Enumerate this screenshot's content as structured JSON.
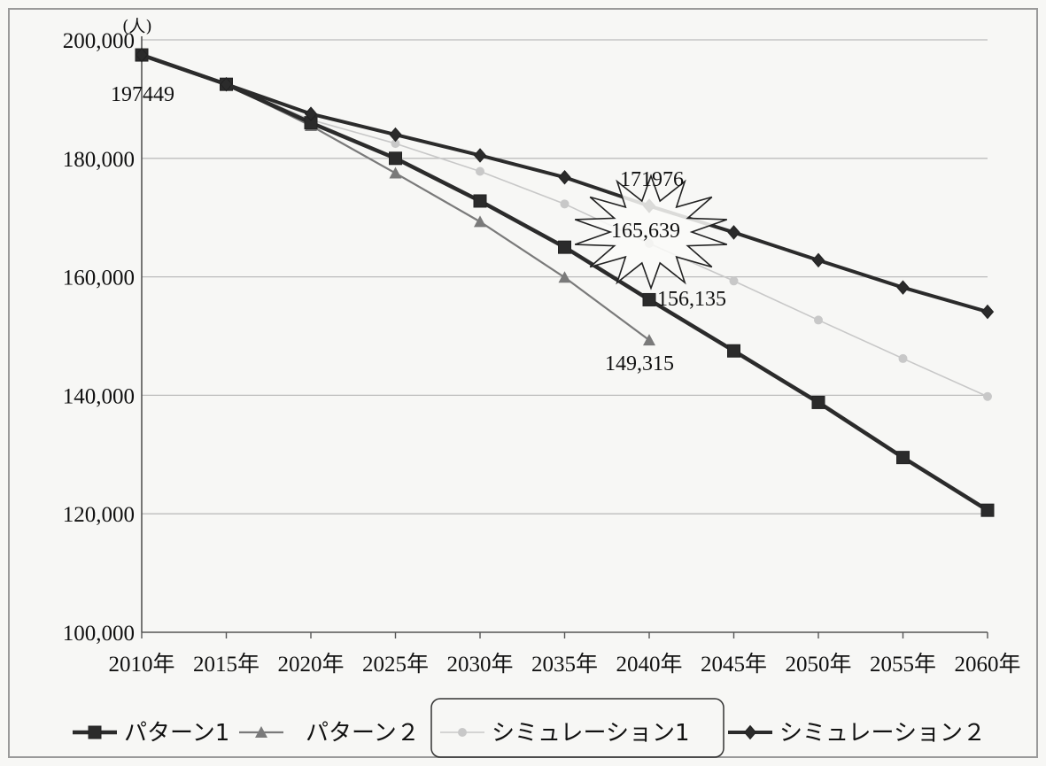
{
  "chart_data": {
    "type": "line",
    "unit": "(人)",
    "categories": [
      "2010年",
      "2015年",
      "2020年",
      "2025年",
      "2030年",
      "2035年",
      "2040年",
      "2045年",
      "2050年",
      "2055年",
      "2060年"
    ],
    "ylim": [
      100000,
      200000
    ],
    "yticks": [
      {
        "value": 100000,
        "label": "100,000"
      },
      {
        "value": 120000,
        "label": "120,000"
      },
      {
        "value": 140000,
        "label": "140,000"
      },
      {
        "value": 160000,
        "label": "160,000"
      },
      {
        "value": 180000,
        "label": "180,000"
      },
      {
        "value": 200000,
        "label": "200,000"
      }
    ],
    "grid": true,
    "legend_position": "bottom",
    "series": [
      {
        "name": "パターン1",
        "marker": "square",
        "color": "#2b2b2b",
        "values": [
          197449,
          192500,
          186000,
          180000,
          172800,
          165000,
          156135,
          147500,
          138800,
          129500,
          120600
        ]
      },
      {
        "name": "パターン２",
        "marker": "triangle",
        "color": "#7a7a7a",
        "values": [
          197449,
          192500,
          185500,
          177500,
          169300,
          159900,
          149315,
          null,
          null,
          null,
          null
        ]
      },
      {
        "name": "シミュレーション1",
        "marker": "circle",
        "color": "#c8c8c8",
        "values": [
          197449,
          192500,
          186500,
          182500,
          177800,
          172300,
          165639,
          159300,
          152700,
          146200,
          139800
        ]
      },
      {
        "name": "シミュレーション２",
        "marker": "diamond",
        "color": "#2b2b2b",
        "values": [
          197449,
          192500,
          187500,
          184000,
          180500,
          176800,
          171976,
          167500,
          162800,
          158200,
          154100
        ]
      }
    ],
    "annotations": [
      {
        "text": "197449",
        "series": 0,
        "index": 0
      },
      {
        "text": "171976",
        "series": 3,
        "index": 6
      },
      {
        "text": "165,639",
        "series": 2,
        "index": 6
      },
      {
        "text": "156,135",
        "series": 0,
        "index": 6
      },
      {
        "text": "149,315",
        "series": 1,
        "index": 6
      }
    ]
  }
}
